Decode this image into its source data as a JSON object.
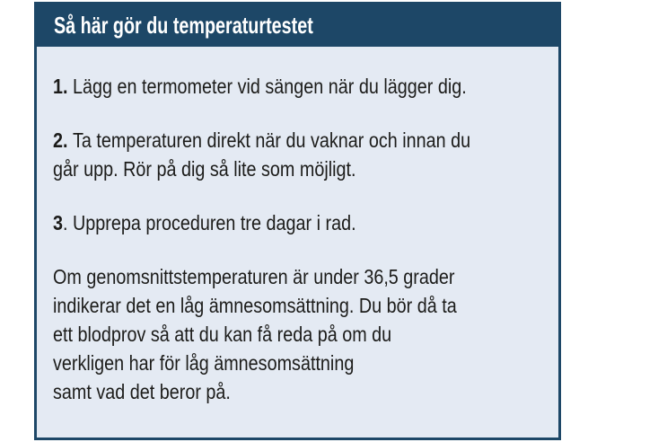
{
  "panel": {
    "title": "Så här gör du temperaturtestet",
    "steps": [
      {
        "number": "1. ",
        "lines": [
          "Lägg en termometer vid sängen när du lägger dig."
        ]
      },
      {
        "number": "2. ",
        "lines": [
          "Ta temperaturen direkt när du vaknar och innan du",
          "går upp. Rör på dig så lite som möjligt."
        ]
      },
      {
        "number": "3",
        "lines": [
          ". Upprepa proceduren tre dagar i rad."
        ]
      }
    ],
    "paragraph_lines": [
      "Om genomsnittstemperaturen är under 36,5 grader",
      "indikerar det en låg ämnesomsättning. Du bör då ta",
      "ett blodprov så att du kan få reda på om du",
      "verkligen har för låg ämnesomsättning",
      "samt vad det beror på."
    ]
  },
  "colors": {
    "header_bg": "#1d4767",
    "body_bg": "#e4eaf3",
    "title_text": "#ffffff",
    "body_text": "#1c1c1a"
  }
}
